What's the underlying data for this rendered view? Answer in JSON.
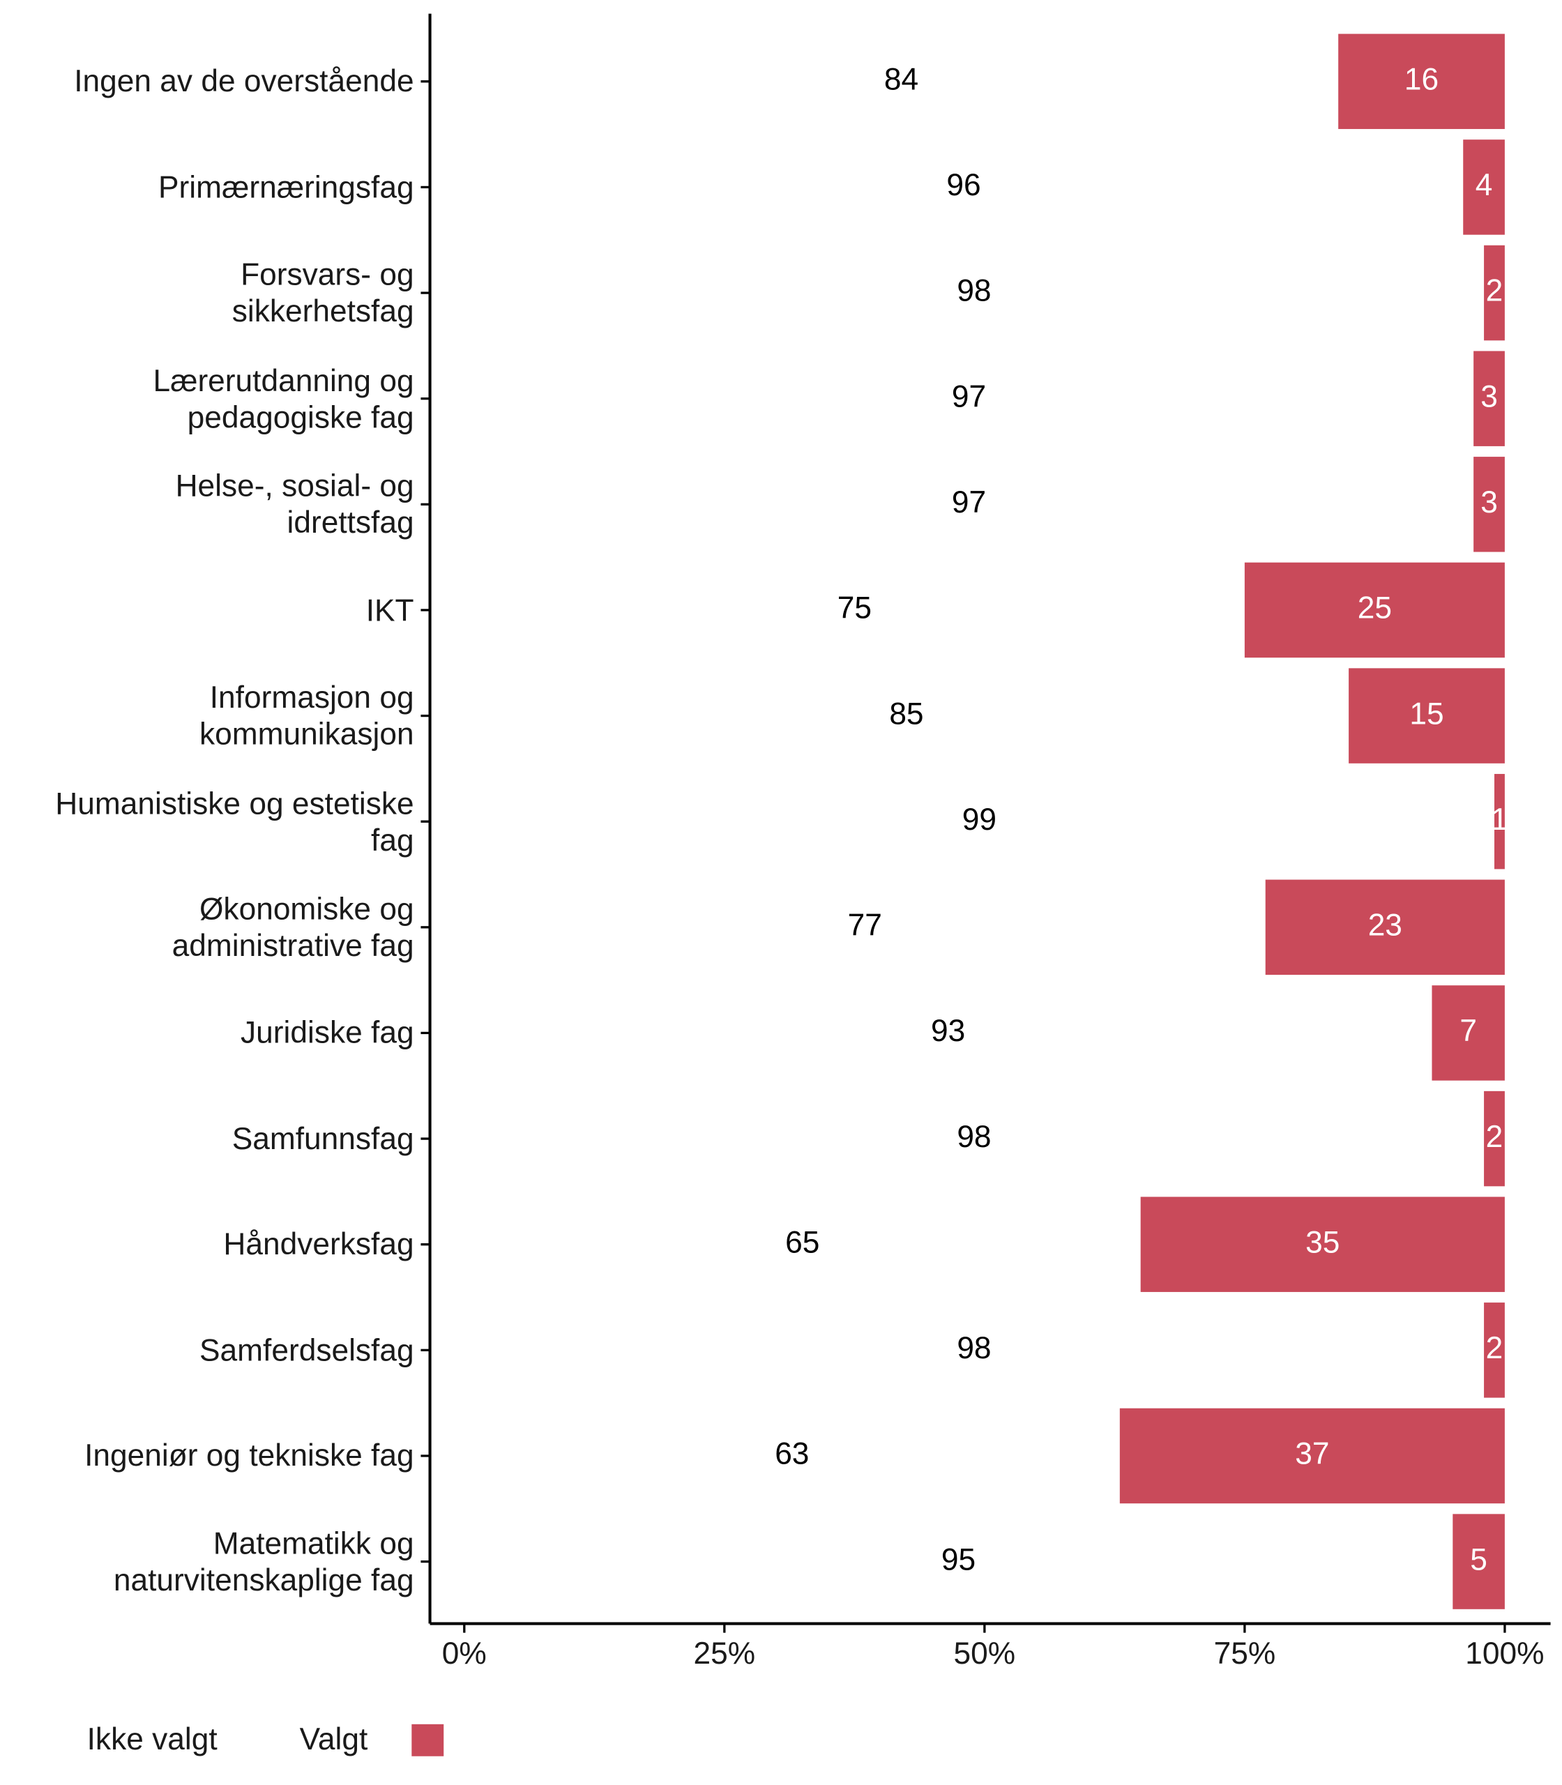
{
  "chart_data": {
    "type": "stacked-bar-horizontal",
    "categories": [
      "Ingen av de overstående",
      "Primærnæringsfag",
      "Forsvars- og\nsikkerhetsfag",
      "Lærerutdanning og\npedagogiske fag",
      "Helse-, sosial- og\nidrettsfag",
      "IKT",
      "Informasjon og\nkommunikasjon",
      "Humanistiske og estetiske\nfag",
      "Økonomiske og\nadministrative fag",
      "Juridiske fag",
      "Samfunnsfag",
      "Håndverksfag",
      "Samferdselsfag",
      "Ingeniør og tekniske fag",
      "Matematikk og\nnaturvitenskaplige fag"
    ],
    "series": [
      {
        "name": "Ikke valgt",
        "color": "#ffffff",
        "label_color": "#000000",
        "values": [
          84,
          96,
          98,
          97,
          97,
          75,
          85,
          99,
          77,
          93,
          98,
          65,
          98,
          63,
          95
        ]
      },
      {
        "name": "Valgt",
        "color": "#c94a5a",
        "label_color": "#ffffff",
        "values": [
          16,
          4,
          2,
          3,
          3,
          25,
          15,
          1,
          23,
          7,
          2,
          35,
          2,
          37,
          5
        ]
      }
    ],
    "xlim": [
      -3.3,
      104.4
    ],
    "xticks": [
      {
        "value": 0,
        "label": "0%"
      },
      {
        "value": 25,
        "label": "25%"
      },
      {
        "value": 50,
        "label": "50%"
      },
      {
        "value": 75,
        "label": "75%"
      },
      {
        "value": 100,
        "label": "100%"
      }
    ],
    "legend": "bottom"
  }
}
